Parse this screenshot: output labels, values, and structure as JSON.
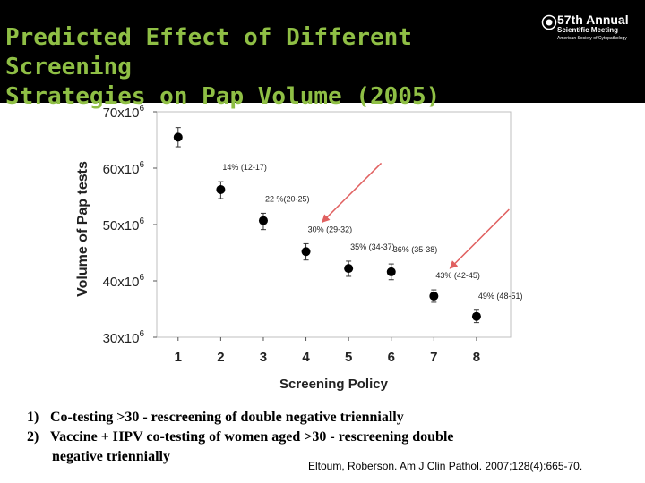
{
  "header": {
    "title_line1": "Predicted Effect of Different Screening",
    "title_line2": "Strategies on Pap Volume (2005)",
    "logo": {
      "line1": "57th Annual",
      "line2": "Scientific Meeting",
      "line3": "American Society of Cytopathology"
    }
  },
  "chart_data": {
    "type": "scatter",
    "xlabel": "Screening Policy",
    "ylabel": "Volume of Pap tests",
    "x": [
      1,
      2,
      3,
      4,
      5,
      6,
      7,
      8
    ],
    "values": [
      65.5,
      56.2,
      50.7,
      45.2,
      42.2,
      41.6,
      37.3,
      33.7
    ],
    "error_low": [
      63.8,
      54.6,
      49.1,
      43.7,
      40.8,
      40.2,
      36.2,
      32.6
    ],
    "error_high": [
      67.2,
      57.6,
      52.0,
      46.6,
      43.5,
      43.0,
      38.4,
      34.8
    ],
    "xlim": [
      0.5,
      8.8
    ],
    "ylim": [
      30,
      70
    ],
    "x_ticks": [
      "1",
      "2",
      "3",
      "4",
      "5",
      "6",
      "7",
      "8"
    ],
    "y_ticks": [
      {
        "value": 30,
        "base": "30x10",
        "exp": "6"
      },
      {
        "value": 40,
        "base": "40x10",
        "exp": "6"
      },
      {
        "value": 50,
        "base": "50x10",
        "exp": "6"
      },
      {
        "value": 60,
        "base": "60x10",
        "exp": "6"
      },
      {
        "value": 70,
        "base": "70x10",
        "exp": "6"
      }
    ],
    "annotations": [
      {
        "text": "14%  (12-17)",
        "point": 2
      },
      {
        "text": "22 %(20-25)",
        "point": 3
      },
      {
        "text": "30%  (29-32)",
        "point": 4
      },
      {
        "text": "35%  (34-37)",
        "point": 5
      },
      {
        "text": "36%  (35-38)",
        "point": 6
      },
      {
        "text": "43%  (42-45)",
        "point": 7
      },
      {
        "text": "49%  (48-51)",
        "point": 8
      }
    ],
    "arrows": [
      {
        "points_to": 4,
        "color": "#e06060"
      },
      {
        "points_to": 7,
        "color": "#e06060"
      }
    ],
    "grid": false
  },
  "notes": [
    {
      "number": "1)",
      "text": "Co-testing  >30  -  rescreening of double negative triennially"
    },
    {
      "number": "2)",
      "text": "Vaccine + HPV co-testing of women aged >30 -  rescreening double"
    }
  ],
  "note_continuation": "negative  triennially",
  "citation": "Eltoum, Roberson. Am J Clin Pathol. 2007;128(4):665-70."
}
